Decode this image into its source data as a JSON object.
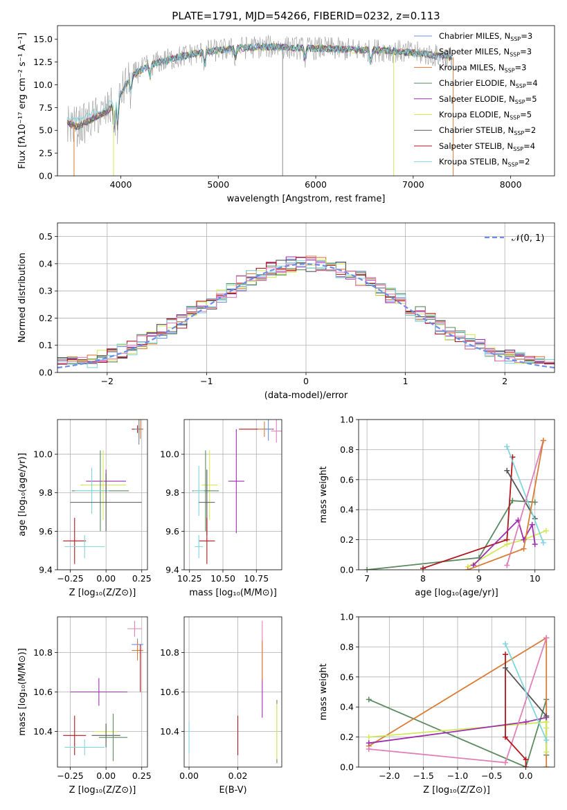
{
  "figure_title": "PLATE=1791, MJD=54266, FIBERID=0232, z=0.113",
  "colors": {
    "chabrier_miles": "#6b8ee8",
    "salpeter_miles": "#8a8a8a",
    "kroupa_miles": "#d97c35",
    "chabrier_elodie": "#5a8a5f",
    "salpeter_elodie": "#9b2fae",
    "kroupa_elodie": "#d3e85a",
    "chabrier_stelib": "#555555",
    "salpeter_stelib": "#b0151b",
    "kroupa_stelib": "#7fd6dd",
    "pink": "#e07fb8"
  },
  "chart_data": [
    {
      "type": "line",
      "id": "spectrum",
      "title": "PLATE=1791, MJD=54266, FIBERID=0232, z=0.113",
      "xlabel": "wavelength [Angstrom, rest frame]",
      "ylabel": "Flux [fλ10⁻¹⁷ erg cm⁻² s⁻¹ A⁻¹]",
      "xlim": [
        3350,
        8450
      ],
      "ylim": [
        0,
        16.5
      ],
      "xticks": [
        "4000",
        "5000",
        "6000",
        "7000",
        "8000"
      ],
      "yticks": [
        "0.0",
        "2.5",
        "5.0",
        "7.5",
        "10.0",
        "12.5",
        "15.0"
      ],
      "grid": false,
      "legend_position": "right",
      "continuum": {
        "x": [
          3450,
          3550,
          3650,
          3750,
          3850,
          3950,
          4050,
          4150,
          4300,
          4500,
          4700,
          4900,
          5100,
          5300,
          5500,
          5700,
          5900,
          6100,
          6300,
          6500,
          6700,
          6900,
          7100,
          7300,
          7350
        ],
        "y": [
          5.8,
          5.4,
          5.9,
          6.5,
          7.0,
          8.0,
          10.0,
          11.3,
          12.2,
          12.8,
          13.3,
          13.7,
          13.9,
          14.1,
          14.2,
          14.1,
          14.0,
          14.0,
          13.9,
          13.8,
          13.8,
          13.6,
          13.4,
          13.1,
          13.0
        ]
      },
      "legend": [
        {
          "label": "Chabrier MILES, N_SSP=3",
          "color_key": "chabrier_miles"
        },
        {
          "label": "Salpeter MILES, N_SSP=3",
          "color_key": "salpeter_miles"
        },
        {
          "label": "Kroupa MILES, N_SSP=3",
          "color_key": "kroupa_miles"
        },
        {
          "label": "Chabrier ELODIE, N_SSP=4",
          "color_key": "chabrier_elodie"
        },
        {
          "label": "Salpeter ELODIE, N_SSP=5",
          "color_key": "salpeter_elodie"
        },
        {
          "label": "Kroupa ELODIE, N_SSP=5",
          "color_key": "kroupa_elodie"
        },
        {
          "label": "Chabrier STELIB, N_SSP=2",
          "color_key": "chabrier_stelib"
        },
        {
          "label": "Salpeter STELIB, N_SSP=4",
          "color_key": "salpeter_stelib"
        },
        {
          "label": "Kroupa STELIB, N_SSP=2",
          "color_key": "kroupa_stelib"
        }
      ]
    },
    {
      "type": "histogram",
      "id": "residuals",
      "xlabel": "(data-model)/error",
      "ylabel": "Normed distribution",
      "xlim": [
        -2.5,
        2.5
      ],
      "ylim": [
        0,
        0.55
      ],
      "xticks": [
        "−2",
        "−1",
        "0",
        "1",
        "2"
      ],
      "yticks": [
        "0.0",
        "0.1",
        "0.2",
        "0.3",
        "0.4",
        "0.5"
      ],
      "grid": true,
      "legend": [
        {
          "label": "𝒩(0, 1)",
          "color_key": "chabrier_miles"
        }
      ],
      "legend_position": "top-right",
      "bin_width": 0.1,
      "bins_start": -2.5
    },
    {
      "type": "scatter",
      "id": "age_vs_Z",
      "xlabel": "Z [log₁₀(Z/Z⊙)]",
      "ylabel": "age  [log₁₀(age/yr)]",
      "xlim": [
        -0.34,
        0.29
      ],
      "ylim": [
        9.4,
        10.18
      ],
      "xticks": [
        "−0.25",
        "0.00",
        "0.25"
      ],
      "yticks": [
        "9.4",
        "9.6",
        "9.8",
        "10.0"
      ],
      "grid": true,
      "points": [
        {
          "x": 0.22,
          "y": 10.13,
          "xerr": 0.04,
          "yerr": 0.02,
          "color_key": "salpeter_stelib"
        },
        {
          "x": 0.23,
          "y": 10.13,
          "xerr": 0.03,
          "yerr": 0.02,
          "color_key": "chabrier_miles"
        },
        {
          "x": 0.24,
          "y": 10.13,
          "xerr": 0.02,
          "yerr": 0.05,
          "color_key": "kroupa_miles"
        },
        {
          "x": 0.23,
          "y": 10.13,
          "xerr": 0.02,
          "yerr": 0.08,
          "color_key": "salpeter_miles"
        },
        {
          "x": 0.0,
          "y": 9.86,
          "xerr": 0.14,
          "yerr": 0.06,
          "color_key": "salpeter_elodie"
        },
        {
          "x": -0.02,
          "y": 9.84,
          "xerr": 0.16,
          "yerr": 0.18,
          "color_key": "kroupa_elodie"
        },
        {
          "x": -0.04,
          "y": 9.81,
          "xerr": 0.2,
          "yerr": 0.21,
          "color_key": "chabrier_elodie"
        },
        {
          "x": -0.1,
          "y": 9.81,
          "xerr": 0.12,
          "yerr": 0.12,
          "color_key": "kroupa_stelib"
        },
        {
          "x": 0.0,
          "y": 9.75,
          "xerr": 0.25,
          "yerr": 0.15,
          "color_key": "chabrier_stelib"
        },
        {
          "x": -0.22,
          "y": 9.55,
          "xerr": 0.08,
          "yerr": 0.12,
          "color_key": "salpeter_stelib"
        },
        {
          "x": -0.15,
          "y": 9.52,
          "xerr": 0.14,
          "yerr": 0.06,
          "color_key": "kroupa_stelib"
        }
      ]
    },
    {
      "type": "scatter",
      "id": "age_vs_mass",
      "xlabel": "mass [log₁₀(M/M⊙)]",
      "xlim": [
        10.21,
        10.94
      ],
      "ylim": [
        9.4,
        10.18
      ],
      "xticks": [
        "10.25",
        "10.50",
        "10.75"
      ],
      "yticks": [
        "9.4",
        "9.6",
        "9.8",
        "10.0"
      ],
      "grid": true,
      "points": [
        {
          "x": 10.75,
          "y": 10.13,
          "xerr": 0.13,
          "yerr": 0.0,
          "color_key": "salpeter_stelib"
        },
        {
          "x": 10.81,
          "y": 10.13,
          "xerr": 0.05,
          "yerr": 0.04,
          "color_key": "kroupa_miles"
        },
        {
          "x": 10.84,
          "y": 10.13,
          "xerr": 0.03,
          "yerr": 0.06,
          "color_key": "chabrier_miles"
        },
        {
          "x": 10.9,
          "y": 10.12,
          "xerr": 0.04,
          "yerr": 0.06,
          "color_key": "pink"
        },
        {
          "x": 10.6,
          "y": 9.86,
          "xerr": 0.06,
          "yerr": 0.27,
          "color_key": "salpeter_elodie"
        },
        {
          "x": 10.4,
          "y": 9.84,
          "xerr": 0.06,
          "yerr": 0.18,
          "color_key": "kroupa_elodie"
        },
        {
          "x": 10.37,
          "y": 9.81,
          "xerr": 0.1,
          "yerr": 0.21,
          "color_key": "chabrier_elodie"
        },
        {
          "x": 10.32,
          "y": 9.81,
          "xerr": 0.04,
          "yerr": 0.13,
          "color_key": "kroupa_stelib"
        },
        {
          "x": 10.38,
          "y": 9.75,
          "xerr": 0.06,
          "yerr": 0.17,
          "color_key": "chabrier_stelib"
        },
        {
          "x": 10.38,
          "y": 9.55,
          "xerr": 0.06,
          "yerr": 0.12,
          "color_key": "salpeter_stelib"
        },
        {
          "x": 10.32,
          "y": 9.52,
          "xerr": 0.03,
          "yerr": 0.06,
          "color_key": "kroupa_stelib"
        }
      ]
    },
    {
      "type": "line",
      "id": "mass_weight_vs_age",
      "xlabel": "age  [log₁₀(age/yr)]",
      "ylabel": "mass weight",
      "xlim": [
        6.85,
        10.35
      ],
      "ylim": [
        0,
        1
      ],
      "xticks": [
        "7",
        "8",
        "9",
        "10"
      ],
      "yticks": [
        "0.0",
        "0.2",
        "0.4",
        "0.6",
        "0.8",
        "1.0"
      ],
      "grid": true,
      "series": [
        {
          "color_key": "chabrier_elodie",
          "x": [
            7.0,
            9.0,
            9.6,
            10.0
          ],
          "y": [
            0.0,
            0.08,
            0.46,
            0.45
          ]
        },
        {
          "color_key": "salpeter_stelib",
          "x": [
            8.0,
            9.5,
            9.6
          ],
          "y": [
            0.01,
            0.2,
            0.75
          ]
        },
        {
          "color_key": "kroupa_elodie",
          "x": [
            8.8,
            9.5,
            9.8,
            10.2
          ],
          "y": [
            0.02,
            0.17,
            0.2,
            0.26
          ]
        },
        {
          "color_key": "salpeter_elodie",
          "x": [
            8.9,
            9.7,
            9.8,
            9.95,
            10.0
          ],
          "y": [
            0.03,
            0.33,
            0.2,
            0.3,
            0.17
          ]
        },
        {
          "color_key": "chabrier_stelib",
          "x": [
            9.5,
            10.0
          ],
          "y": [
            0.66,
            0.34
          ]
        },
        {
          "color_key": "kroupa_stelib",
          "x": [
            9.5,
            10.15
          ],
          "y": [
            0.82,
            0.18
          ]
        },
        {
          "color_key": "pink",
          "x": [
            9.5,
            10.15
          ],
          "y": [
            0.03,
            0.86
          ]
        },
        {
          "color_key": "kroupa_miles",
          "x": [
            8.8,
            9.8,
            10.15
          ],
          "y": [
            0.0,
            0.14,
            0.86
          ]
        }
      ]
    },
    {
      "type": "scatter",
      "id": "mass_vs_Z",
      "xlabel": "Z [log₁₀(Z/Z⊙)]",
      "ylabel": "mass [log₁₀(M/M⊙)]",
      "xlim": [
        -0.34,
        0.29
      ],
      "ylim": [
        10.22,
        10.98
      ],
      "xticks": [
        "−0.25",
        "0.00",
        "0.25"
      ],
      "yticks": [
        "10.4",
        "10.6",
        "10.8"
      ],
      "grid": true,
      "points": [
        {
          "x": 0.2,
          "y": 10.92,
          "xerr": 0.05,
          "yerr": 0.04,
          "color_key": "pink"
        },
        {
          "x": 0.22,
          "y": 10.84,
          "xerr": 0.04,
          "yerr": 0.03,
          "color_key": "chabrier_miles"
        },
        {
          "x": 0.22,
          "y": 10.81,
          "xerr": 0.04,
          "yerr": 0.05,
          "color_key": "kroupa_miles"
        },
        {
          "x": 0.24,
          "y": 10.72,
          "xerr": 0.0,
          "yerr": 0.12,
          "color_key": "salpeter_stelib"
        },
        {
          "x": -0.05,
          "y": 10.6,
          "xerr": 0.2,
          "yerr": 0.07,
          "color_key": "salpeter_elodie"
        },
        {
          "x": 0.0,
          "y": 10.4,
          "xerr": 0.08,
          "yerr": 0.03,
          "color_key": "kroupa_elodie"
        },
        {
          "x": 0.0,
          "y": 10.38,
          "xerr": 0.1,
          "yerr": 0.06,
          "color_key": "chabrier_stelib"
        },
        {
          "x": -0.22,
          "y": 10.38,
          "xerr": 0.08,
          "yerr": 0.1,
          "color_key": "salpeter_stelib"
        },
        {
          "x": 0.05,
          "y": 10.37,
          "xerr": 0.1,
          "yerr": 0.12,
          "color_key": "chabrier_elodie"
        },
        {
          "x": -0.15,
          "y": 10.32,
          "xerr": 0.14,
          "yerr": 0.04,
          "color_key": "kroupa_stelib"
        }
      ]
    },
    {
      "type": "scatter",
      "id": "mass_vs_EBV",
      "xlabel": "E(B-V)",
      "xlim": [
        -0.002,
        0.038
      ],
      "ylim": [
        10.22,
        10.98
      ],
      "xticks": [
        "0.00",
        "0.02"
      ],
      "yticks": [
        "10.4",
        "10.6",
        "10.8"
      ],
      "grid": true,
      "points": [
        {
          "x": 0.0,
          "y": 10.37,
          "xerr": 0.0,
          "yerr": 0.08,
          "color_key": "kroupa_stelib"
        },
        {
          "x": 0.02,
          "y": 10.38,
          "xerr": 0.0,
          "yerr": 0.1,
          "color_key": "salpeter_stelib"
        },
        {
          "x": 0.03,
          "y": 10.57,
          "xerr": 0.0,
          "yerr": 0.1,
          "color_key": "salpeter_elodie"
        },
        {
          "x": 0.03,
          "y": 10.81,
          "xerr": 0.0,
          "yerr": 0.15,
          "color_key": "pink"
        },
        {
          "x": 0.03,
          "y": 10.76,
          "xerr": 0.0,
          "yerr": 0.1,
          "color_key": "kroupa_miles"
        },
        {
          "x": 0.036,
          "y": 10.4,
          "xerr": 0.0,
          "yerr": 0.16,
          "color_key": "chabrier_elodie"
        },
        {
          "x": 0.036,
          "y": 10.4,
          "xerr": 0.0,
          "yerr": 0.14,
          "color_key": "kroupa_elodie"
        }
      ]
    },
    {
      "type": "line",
      "id": "mass_weight_vs_Z",
      "xlabel": "Z [log₁₀(Z/Z⊙)]",
      "ylabel": "mass weight",
      "xlim": [
        -2.45,
        0.42
      ],
      "ylim": [
        0,
        1
      ],
      "xticks": [
        "−2.0",
        "−1.5",
        "−1.0",
        "−0.5",
        "0.0"
      ],
      "yticks": [
        "0.0",
        "0.2",
        "0.4",
        "0.6",
        "0.8",
        "1.0"
      ],
      "grid": true,
      "series": [
        {
          "color_key": "chabrier_elodie",
          "x": [
            -2.3,
            0.0,
            0.3,
            0.3
          ],
          "y": [
            0.45,
            0.0,
            0.45,
            0.08
          ]
        },
        {
          "color_key": "kroupa_miles",
          "x": [
            -2.3,
            0.3,
            0.3
          ],
          "y": [
            0.14,
            0.86,
            0.0
          ]
        },
        {
          "color_key": "kroupa_elodie",
          "x": [
            -2.3,
            0.3,
            0.3,
            0.3
          ],
          "y": [
            0.2,
            0.3,
            0.1,
            0.26
          ]
        },
        {
          "color_key": "salpeter_elodie",
          "x": [
            -2.3,
            0.0,
            0.3
          ],
          "y": [
            0.16,
            0.3,
            0.33
          ]
        },
        {
          "color_key": "pink",
          "x": [
            -2.3,
            -0.3,
            0.3
          ],
          "y": [
            0.12,
            0.03,
            0.86
          ]
        },
        {
          "color_key": "salpeter_stelib",
          "x": [
            -0.3,
            -0.3,
            0.0,
            0.0
          ],
          "y": [
            0.75,
            0.2,
            0.05,
            0.0
          ]
        },
        {
          "color_key": "chabrier_stelib",
          "x": [
            -0.3,
            0.3
          ],
          "y": [
            0.66,
            0.34
          ]
        },
        {
          "color_key": "kroupa_stelib",
          "x": [
            -0.3,
            0.3
          ],
          "y": [
            0.82,
            0.18
          ]
        }
      ]
    }
  ]
}
